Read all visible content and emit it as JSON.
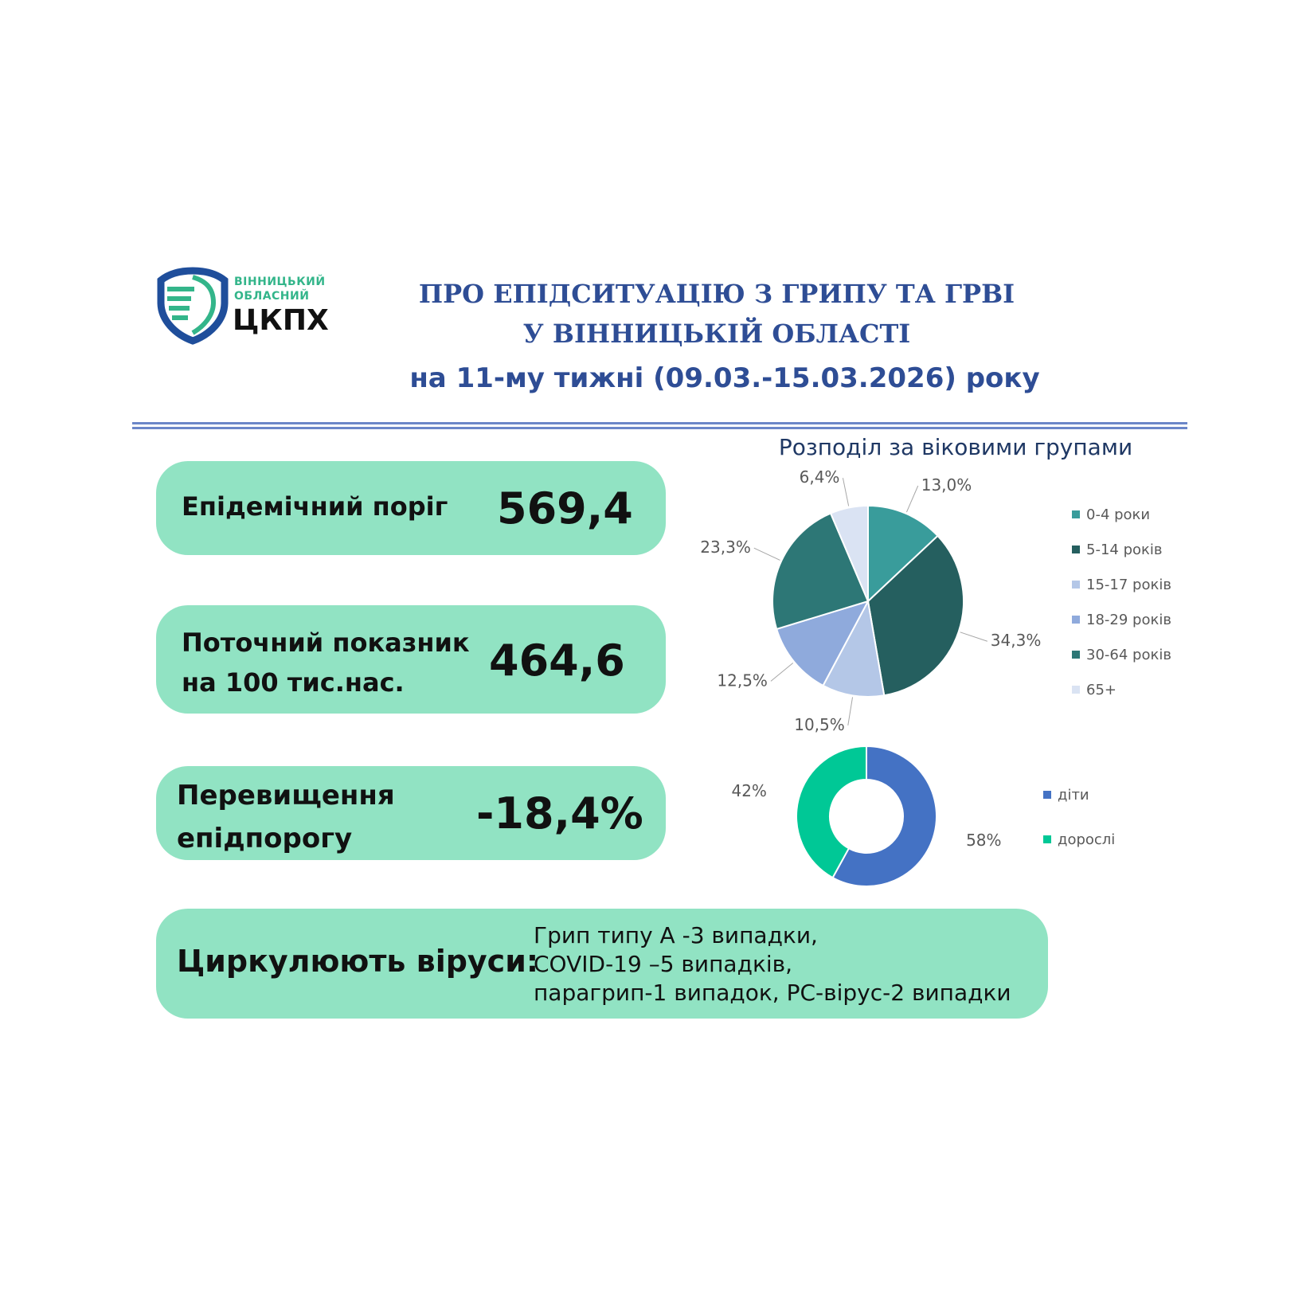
{
  "logo": {
    "line1": "ВІННИЦЬКИЙ",
    "line2": "ОБЛАСНИЙ",
    "name": "ЦКПХ",
    "colors": [
      "#1f4e9b",
      "#33b58a"
    ]
  },
  "header": {
    "title_line1": "ПРО ЕПІДСИТУАЦІЮ З ГРИПУ ТА ГРВІ",
    "title_line2": "У ВІННИЦЬКІЙ ОБЛАСТІ",
    "subtitle": "на 11-му тижні (09.03.-15.03.2026) року"
  },
  "cards": {
    "threshold": {
      "label": "Епідемічний поріг",
      "value": "569,4"
    },
    "current": {
      "label_line1": "Поточний показник",
      "label_line2": "на 100 тис.нас.",
      "value": "464,6"
    },
    "excess": {
      "label_line1": "Перевищення",
      "label_line2": "епідпорогу",
      "value": "-18,4%"
    },
    "viruses": {
      "label": "Циркулюють віруси:",
      "line1": "Грип типу А -3 випадки,",
      "line2": "COVID-19 –5 випадків,",
      "line3": "парагрип-1 випадок, РС-вірус-2 випадки"
    }
  },
  "accent_color": "#91e3c3",
  "chart_data": [
    {
      "type": "pie",
      "title": "Розподіл за віковими групами",
      "categories": [
        "0-4 роки",
        "5-14 років",
        "15-17 років",
        "18-29 років",
        "30-64 років",
        "65+"
      ],
      "values": [
        13.0,
        34.3,
        10.5,
        12.5,
        23.3,
        6.4
      ],
      "data_labels": [
        "13,0%",
        "34,3%",
        "10,5%",
        "12,5%",
        "23,3%",
        "6,4%"
      ],
      "colors": [
        "#399c9b",
        "#255f5f",
        "#b4c7e7",
        "#8faadc",
        "#2d7776",
        "#dae3f3"
      ],
      "legend": "right"
    },
    {
      "type": "pie",
      "subtype": "donut",
      "categories": [
        "діти",
        "дорослі"
      ],
      "values": [
        58,
        42
      ],
      "data_labels": [
        "58%",
        "42%"
      ],
      "colors": [
        "#4472c4",
        "#00c896"
      ],
      "legend": "right"
    }
  ]
}
